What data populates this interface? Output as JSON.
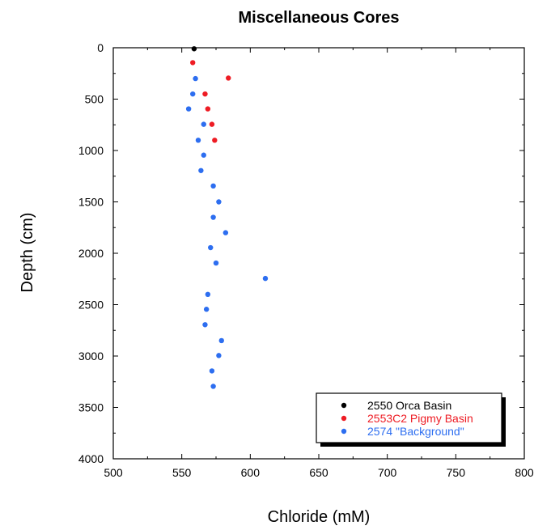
{
  "chart_data": {
    "type": "scatter",
    "title": "Miscellaneous Cores",
    "xlabel": "Chloride (mM)",
    "ylabel": "Depth (cm)",
    "xlim": [
      500,
      800
    ],
    "ylim": [
      0,
      4000
    ],
    "y_inverted": true,
    "x_ticks": [
      500,
      550,
      600,
      650,
      700,
      750,
      800
    ],
    "y_ticks": [
      0,
      500,
      1000,
      1500,
      2000,
      2500,
      3000,
      3500,
      4000
    ],
    "grid": false,
    "legend_position": "bottom-right",
    "series": [
      {
        "name": "2550 Orca Basin",
        "color": "#000000",
        "points": [
          [
            559,
            10
          ]
        ]
      },
      {
        "name": "2553C2 Pigmy Basin",
        "color": "#ee1c24",
        "points": [
          [
            558,
            145
          ],
          [
            584,
            295
          ],
          [
            567,
            450
          ],
          [
            569,
            595
          ],
          [
            572,
            745
          ],
          [
            574,
            900
          ]
        ]
      },
      {
        "name": "2574 \"Background\"",
        "color": "#2d6ef0",
        "points": [
          [
            560,
            300
          ],
          [
            558,
            450
          ],
          [
            555,
            595
          ],
          [
            566,
            745
          ],
          [
            562,
            900
          ],
          [
            566,
            1045
          ],
          [
            564,
            1195
          ],
          [
            573,
            1345
          ],
          [
            577,
            1500
          ],
          [
            573,
            1650
          ],
          [
            582,
            1800
          ],
          [
            571,
            1945
          ],
          [
            575,
            2095
          ],
          [
            611,
            2245
          ],
          [
            569,
            2400
          ],
          [
            568,
            2545
          ],
          [
            567,
            2695
          ],
          [
            579,
            2850
          ],
          [
            577,
            2995
          ],
          [
            572,
            3145
          ],
          [
            573,
            3295
          ]
        ]
      }
    ]
  }
}
